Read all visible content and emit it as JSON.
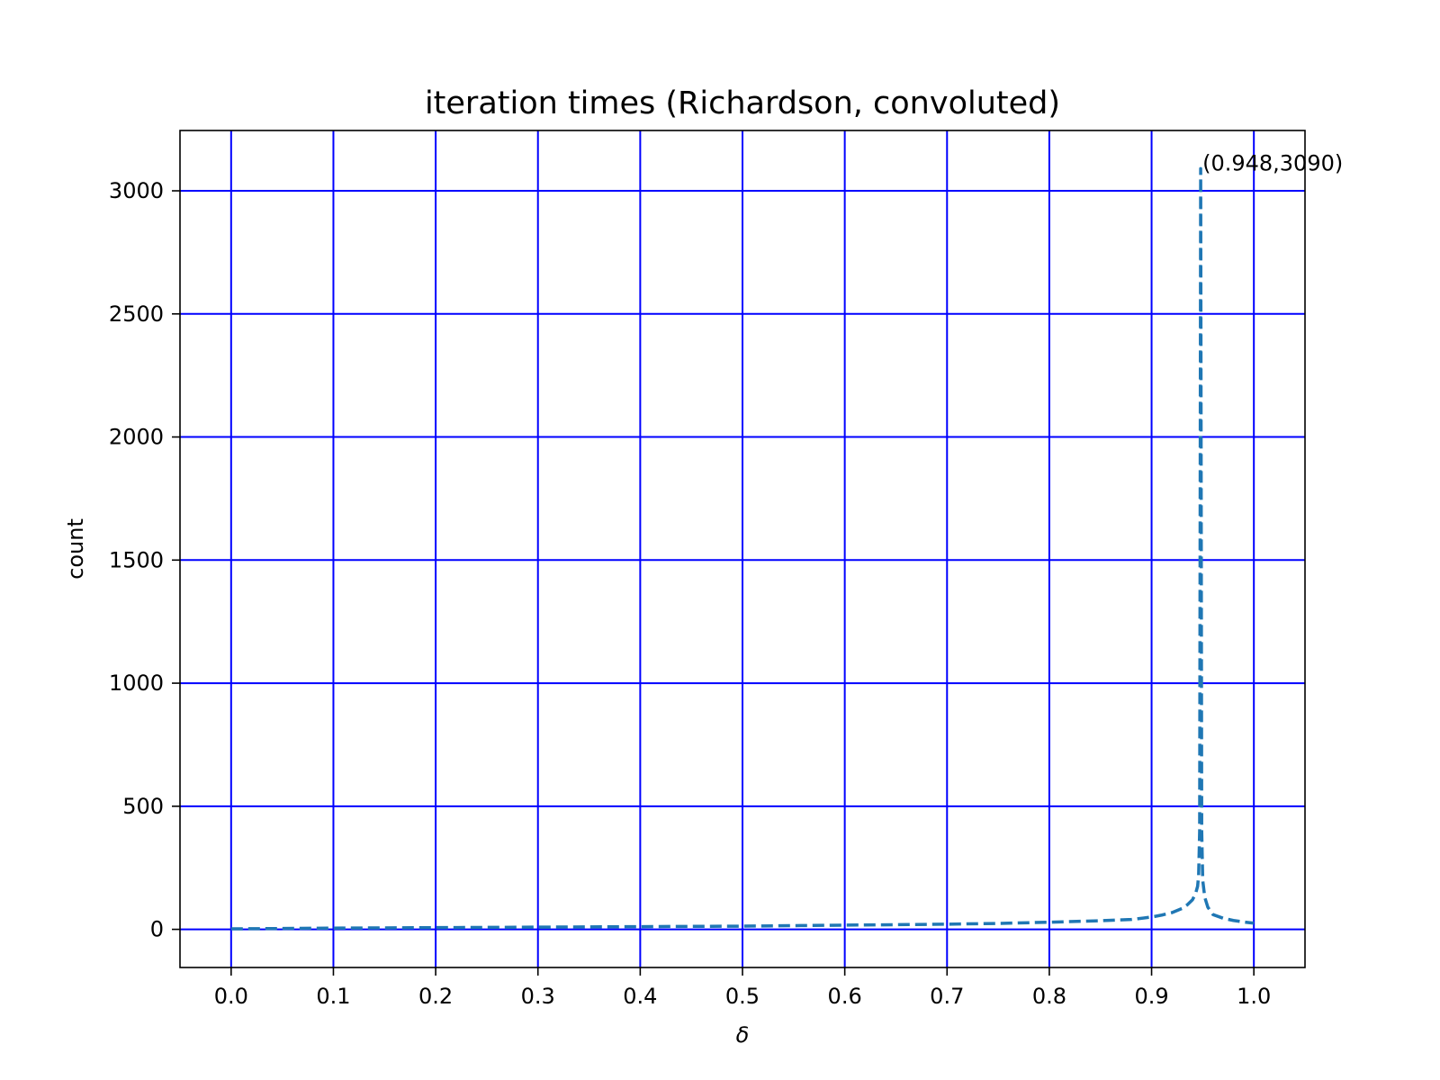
{
  "chart_data": {
    "type": "line",
    "title": "iteration times (Richardson, convoluted)",
    "xlabel": "δ",
    "ylabel": "count",
    "xlim": [
      -0.05,
      1.05
    ],
    "ylim": [
      -155,
      3245
    ],
    "xticks": [
      0.0,
      0.1,
      0.2,
      0.3,
      0.4,
      0.5,
      0.6,
      0.7,
      0.8,
      0.9,
      1.0
    ],
    "xtick_labels": [
      "0.0",
      "0.1",
      "0.2",
      "0.3",
      "0.4",
      "0.5",
      "0.6",
      "0.7",
      "0.8",
      "0.9",
      "1.0"
    ],
    "yticks": [
      0,
      500,
      1000,
      1500,
      2000,
      2500,
      3000
    ],
    "ytick_labels": [
      "0",
      "500",
      "1000",
      "1500",
      "2000",
      "2500",
      "3000"
    ],
    "grid": true,
    "grid_color": "#0000ff",
    "series": [
      {
        "color": "#1f77b4",
        "linestyle": "dashed",
        "x": [
          0.0,
          0.1,
          0.2,
          0.3,
          0.4,
          0.5,
          0.6,
          0.7,
          0.75,
          0.8,
          0.85,
          0.88,
          0.9,
          0.91,
          0.92,
          0.93,
          0.935,
          0.94,
          0.943,
          0.945,
          0.946,
          0.947,
          0.948,
          0.949,
          0.95,
          0.952,
          0.955,
          0.96,
          0.97,
          0.98,
          0.99,
          1.0
        ],
        "y": [
          2,
          5,
          7,
          9,
          11,
          13,
          17,
          21,
          24,
          29,
          35,
          40,
          50,
          58,
          68,
          85,
          100,
          120,
          145,
          175,
          220,
          400,
          3090,
          400,
          200,
          130,
          90,
          60,
          45,
          36,
          30,
          25
        ]
      }
    ],
    "annotations": [
      {
        "text": "(0.948,3090)",
        "x": 0.948,
        "y": 3090
      }
    ]
  }
}
